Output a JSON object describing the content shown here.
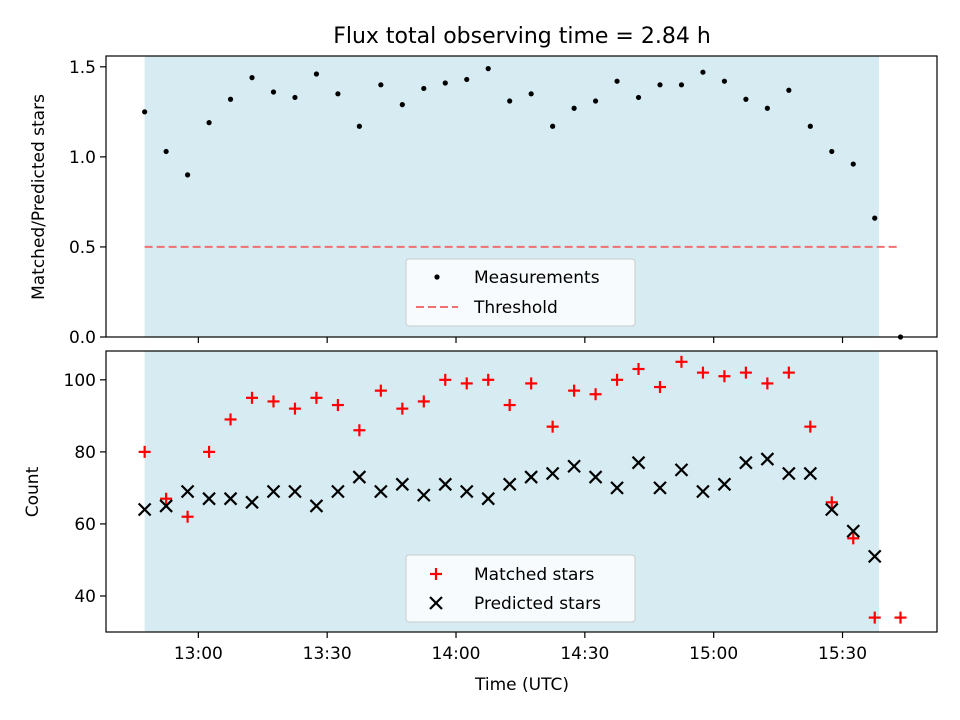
{
  "title": "Flux total observing time = 2.84 h",
  "colors": {
    "shade": "#add8e6",
    "matched": "#ff0000",
    "predicted": "#000000",
    "threshold": "#f07070",
    "measurement": "#000000"
  },
  "chart_data": [
    {
      "type": "scatter",
      "ylabel": "Matched/Predicted stars",
      "ylim": [
        0,
        1.56
      ],
      "yticks": [
        0.0,
        0.5,
        1.0,
        1.5
      ],
      "ytick_labels": [
        "0.0",
        "0.5",
        "1.0",
        "1.5"
      ],
      "shaded_range_minutes": [
        767.5,
        938.5
      ],
      "threshold": {
        "value": 0.5,
        "x_range_minutes": [
          767.5,
          943.5
        ]
      },
      "legend": {
        "placement": "lower-center",
        "entries": [
          "Measurements",
          "Threshold"
        ]
      },
      "series": [
        {
          "name": "Measurements",
          "x_minutes": [
            767.5,
            772.5,
            777.5,
            782.5,
            787.5,
            792.5,
            797.5,
            802.5,
            807.5,
            812.5,
            817.5,
            822.5,
            827.5,
            832.5,
            837.5,
            842.5,
            847.5,
            852.5,
            857.5,
            862.5,
            867.5,
            872.5,
            877.5,
            882.5,
            887.5,
            892.5,
            897.5,
            902.5,
            907.5,
            912.5,
            917.5,
            922.5,
            927.5,
            932.5,
            937.5,
            943.5
          ],
          "values": [
            1.25,
            1.03,
            0.9,
            1.19,
            1.32,
            1.44,
            1.36,
            1.33,
            1.46,
            1.35,
            1.17,
            1.4,
            1.29,
            1.38,
            1.41,
            1.43,
            1.49,
            1.31,
            1.35,
            1.17,
            1.27,
            1.31,
            1.42,
            1.33,
            1.4,
            1.4,
            1.47,
            1.42,
            1.32,
            1.27,
            1.37,
            1.17,
            1.03,
            0.96,
            0.66,
            0.0
          ]
        }
      ]
    },
    {
      "type": "scatter",
      "ylabel": "Count",
      "xlabel": "Time (UTC)",
      "xlim_minutes": [
        758.5,
        952.0
      ],
      "ylim": [
        30,
        108
      ],
      "yticks": [
        40,
        60,
        80,
        100
      ],
      "ytick_labels": [
        "40",
        "60",
        "80",
        "100"
      ],
      "xticks_minutes": [
        780,
        810,
        840,
        870,
        900,
        930
      ],
      "xtick_labels": [
        "13:00",
        "13:30",
        "14:00",
        "14:30",
        "15:00",
        "15:30"
      ],
      "shaded_range_minutes": [
        767.5,
        938.5
      ],
      "legend": {
        "placement": "lower-center",
        "entries": [
          "Matched stars",
          "Predicted stars"
        ]
      },
      "series": [
        {
          "name": "Matched stars",
          "marker": "plus",
          "x_minutes": [
            767.5,
            772.5,
            777.5,
            782.5,
            787.5,
            792.5,
            797.5,
            802.5,
            807.5,
            812.5,
            817.5,
            822.5,
            827.5,
            832.5,
            837.5,
            842.5,
            847.5,
            852.5,
            857.5,
            862.5,
            867.5,
            872.5,
            877.5,
            882.5,
            887.5,
            892.5,
            897.5,
            902.5,
            907.5,
            912.5,
            917.5,
            922.5,
            927.5,
            932.5,
            937.5,
            943.5
          ],
          "values": [
            80,
            67,
            62,
            80,
            89,
            95,
            94,
            92,
            95,
            93,
            86,
            97,
            92,
            94,
            100,
            99,
            100,
            93,
            99,
            87,
            97,
            96,
            100,
            103,
            98,
            105,
            102,
            101,
            102,
            99,
            102,
            87,
            66,
            56,
            34,
            34
          ]
        },
        {
          "name": "Predicted stars",
          "marker": "x",
          "x_minutes": [
            767.5,
            772.5,
            777.5,
            782.5,
            787.5,
            792.5,
            797.5,
            802.5,
            807.5,
            812.5,
            817.5,
            822.5,
            827.5,
            832.5,
            837.5,
            842.5,
            847.5,
            852.5,
            857.5,
            862.5,
            867.5,
            872.5,
            877.5,
            882.5,
            887.5,
            892.5,
            897.5,
            902.5,
            907.5,
            912.5,
            917.5,
            922.5,
            927.5,
            932.5,
            937.5
          ],
          "values": [
            64,
            65,
            69,
            67,
            67,
            66,
            69,
            69,
            65,
            69,
            73,
            69,
            71,
            68,
            71,
            69,
            67,
            71,
            73,
            74,
            76,
            73,
            70,
            77,
            70,
            75,
            69,
            71,
            77,
            78,
            74,
            74,
            64,
            58,
            51
          ]
        }
      ]
    }
  ]
}
